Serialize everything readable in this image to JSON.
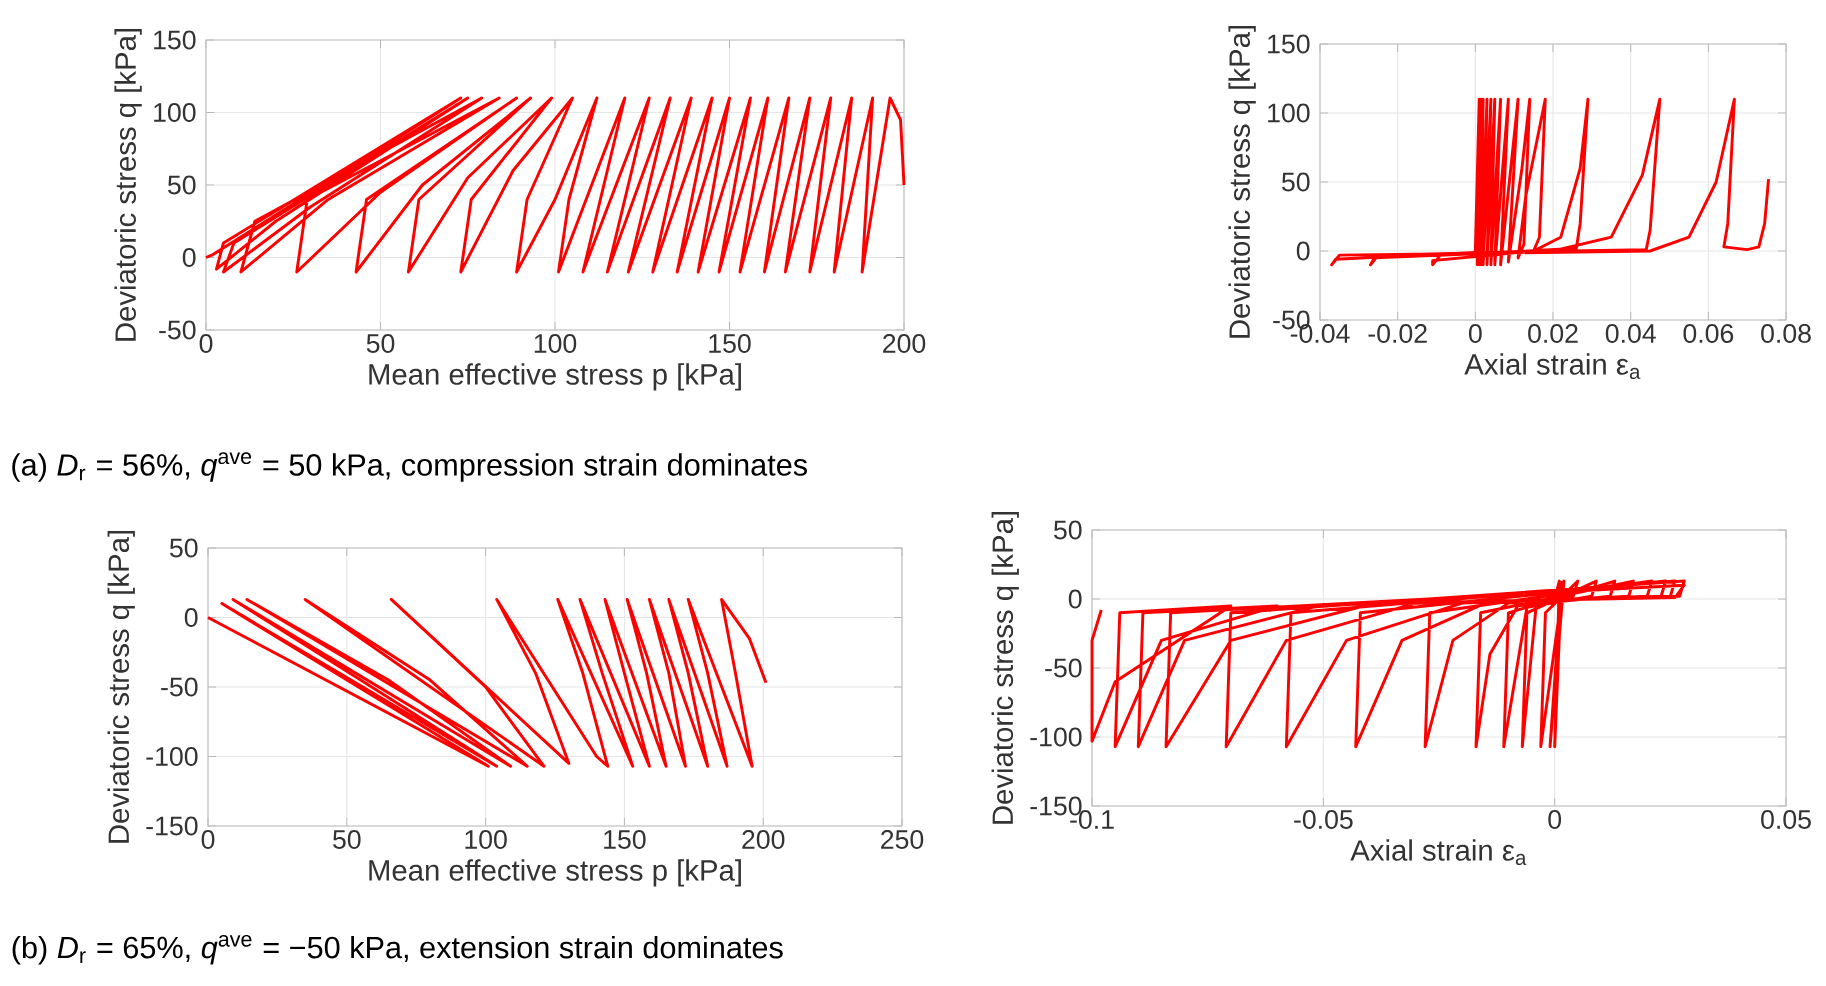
{
  "chart_data": [
    {
      "type": "line",
      "xlabel": "Mean effective stress p [kPa]",
      "ylabel": "Deviatoric stress q [kPa]",
      "xlim": [
        0,
        200
      ],
      "ylim": [
        -50,
        150
      ],
      "xticks": [
        0,
        50,
        100,
        150,
        200
      ],
      "yticks": [
        -50,
        0,
        50,
        100,
        150
      ],
      "grid": true,
      "line_style": "solid",
      "annotations": [
        "(a) *D*$_{r}$ = 56%, *q*$^{ave}$ = 50 kPa, compression strain dominates"
      ],
      "series": [
        {
          "color": "#ff0000",
          "x": [
            200,
            199,
            196,
            188,
            191,
            180,
            185,
            173,
            179,
            166,
            173,
            160,
            167,
            153,
            161,
            147,
            156,
            141,
            150,
            135,
            145,
            128,
            139,
            121,
            133,
            115,
            127,
            108,
            120,
            101,
            104,
            112,
            100,
            89,
            92,
            105,
            88,
            73,
            76,
            99,
            75,
            58,
            61,
            93,
            62,
            43,
            46,
            89,
            50,
            26,
            29,
            84,
            35,
            10,
            14,
            79,
            30,
            5,
            8,
            75,
            20,
            3,
            5,
            73,
            2,
            0
          ],
          "values": [
            50,
            95,
            110,
            -10,
            110,
            -10,
            110,
            -10,
            110,
            -10,
            110,
            -10,
            110,
            -10,
            110,
            -10,
            110,
            -10,
            110,
            -10,
            110,
            -10,
            110,
            -10,
            110,
            -10,
            110,
            -10,
            110,
            -10,
            40,
            110,
            40,
            -10,
            40,
            110,
            60,
            -10,
            40,
            110,
            55,
            -10,
            40,
            110,
            50,
            -10,
            40,
            110,
            45,
            -10,
            40,
            110,
            40,
            -10,
            25,
            110,
            35,
            -10,
            10,
            110,
            25,
            -8,
            10,
            110,
            2,
            0
          ]
        }
      ]
    },
    {
      "type": "line",
      "xlabel": "Axial strain ε$_{a}$",
      "ylabel": "Deviatoric stress q [kPa]",
      "xlim": [
        -0.04,
        0.08
      ],
      "ylim": [
        -50,
        150
      ],
      "xticks": [
        -0.04,
        -0.02,
        0,
        0.02,
        0.04,
        0.06,
        0.08
      ],
      "yticks": [
        -50,
        0,
        50,
        100,
        150
      ],
      "grid": true,
      "line_style": "solid",
      "series": [
        {
          "color": "#ff0000",
          "x": [
            0,
            0.001,
            0.0005,
            0.0015,
            0.001,
            0.002,
            0.0015,
            0.003,
            0.002,
            0.004,
            0.003,
            0.005,
            0.004,
            0.0065,
            0.005,
            0.0085,
            0.0065,
            0.011,
            0.0085,
            0.012,
            0.014,
            0.0125,
            0.011,
            0.013,
            0.018,
            0.0165,
            0.015,
            0,
            -0.011,
            -0.011,
            -0.009,
            0.015,
            0.022,
            0.027,
            0.029,
            0.027,
            0.026,
            0,
            -0.026,
            -0.027,
            -0.025,
            0.02,
            0.035,
            0.043,
            0.0475,
            0.045,
            0.044,
            0,
            -0.036,
            -0.037,
            -0.035,
            0.045,
            0.055,
            0.062,
            0.0667,
            0.065,
            0.064,
            0.07,
            0.073,
            0.0745,
            0.0755
          ],
          "values": [
            0,
            110,
            -10,
            110,
            -10,
            110,
            -10,
            110,
            -10,
            110,
            -10,
            110,
            -10,
            110,
            -10,
            110,
            -10,
            110,
            -8,
            60,
            110,
            5,
            -5,
            40,
            110,
            10,
            0,
            -4,
            -7,
            -10,
            -3,
            0,
            10,
            60,
            110,
            20,
            2,
            -2,
            -5,
            -10,
            -3,
            0,
            10,
            55,
            110,
            15,
            1,
            -1,
            -6,
            -10,
            -3,
            0,
            10,
            50,
            110,
            20,
            3,
            1,
            3,
            20,
            52
          ]
        }
      ]
    },
    {
      "type": "line",
      "xlabel": "Mean effective stress p [kPa]",
      "ylabel": "Deviatoric stress q [kPa]",
      "xlim": [
        0,
        250
      ],
      "ylim": [
        -150,
        50
      ],
      "xticks": [
        0,
        50,
        100,
        150,
        200,
        250
      ],
      "yticks": [
        -150,
        -100,
        -50,
        0,
        50
      ],
      "grid": true,
      "line_style": "solid",
      "annotations": [
        "(b) *D*$_{r}$ = 65%, *q*$^{ave}$ = −50 kPa, extension strain dominates"
      ],
      "series": [
        {
          "color": "#ff0000",
          "x": [
            201,
            195,
            185,
            190,
            196,
            173,
            180,
            187,
            166,
            173,
            180,
            159,
            166,
            172,
            151,
            158,
            165,
            143,
            150,
            159,
            134,
            142,
            153,
            126,
            135,
            144,
            140,
            104,
            118,
            130,
            66,
            100,
            121,
            35,
            80,
            115,
            14,
            65,
            109,
            9,
            55,
            104,
            5,
            101,
            0
          ],
          "values": [
            -47,
            -15,
            13,
            -40,
            -107,
            13,
            -40,
            -107,
            13,
            -40,
            -107,
            13,
            -40,
            -107,
            13,
            -40,
            -107,
            13,
            -40,
            -107,
            13,
            -40,
            -107,
            13,
            -40,
            -107,
            -100,
            13,
            -40,
            -105,
            13,
            -50,
            -107,
            13,
            -45,
            -107,
            13,
            -45,
            -107,
            13,
            -45,
            -107,
            10,
            -107,
            0
          ]
        }
      ]
    },
    {
      "type": "line",
      "xlabel": "Axial strain ε$_{a}$",
      "ylabel": "Deviatoric stress q [kPa]",
      "xlim": [
        -0.1,
        0.05
      ],
      "ylim": [
        -150,
        50
      ],
      "xticks": [
        -0.1,
        -0.05,
        0,
        0.05
      ],
      "yticks": [
        -150,
        -100,
        -50,
        0,
        50
      ],
      "grid": true,
      "line_style": "solid",
      "series": [
        {
          "color": "#ff0000",
          "x": [
            0,
            0.001,
            0,
            0.0015,
            -0.001,
            0.002,
            -0.003,
            -0.002,
            0.005,
            0.004,
            -0.004,
            -0.007,
            -0.006,
            0.009,
            0.008,
            -0.006,
            -0.011,
            -0.01,
            0.013,
            0.012,
            -0.008,
            -0.014,
            -0.017,
            -0.016,
            0.017,
            0.016,
            -0.01,
            -0.022,
            -0.028,
            -0.027,
            0.021,
            0.02,
            -0.015,
            -0.033,
            -0.043,
            -0.042,
            0.024,
            0.023,
            -0.02,
            -0.045,
            -0.058,
            -0.057,
            0.026,
            0.025,
            -0.03,
            -0.058,
            -0.071,
            -0.07,
            0.028,
            0.027,
            -0.04,
            -0.07,
            -0.084,
            -0.083,
            0.028,
            0.026,
            -0.05,
            -0.08,
            -0.09,
            -0.089,
            -0.06,
            -0.085,
            -0.095,
            -0.094,
            -0.07,
            -0.095,
            -0.1,
            -0.1,
            -0.098
          ],
          "values": [
            0,
            13,
            -107,
            12,
            -107,
            13,
            -107,
            -10,
            13,
            2,
            -5,
            -107,
            -10,
            13,
            2,
            -6,
            -107,
            -10,
            13,
            2,
            -5,
            -40,
            -107,
            -10,
            13,
            2,
            -3,
            -30,
            -107,
            -10,
            13,
            2,
            -3,
            -30,
            -107,
            -10,
            13,
            2,
            -3,
            -30,
            -107,
            -10,
            13,
            2,
            -3,
            -30,
            -107,
            -10,
            13,
            2,
            -4,
            -30,
            -107,
            -10,
            10,
            1,
            -4,
            -30,
            -107,
            -10,
            -5,
            -30,
            -107,
            -10,
            -5,
            -60,
            -103,
            -30,
            -8
          ]
        }
      ]
    }
  ]
}
